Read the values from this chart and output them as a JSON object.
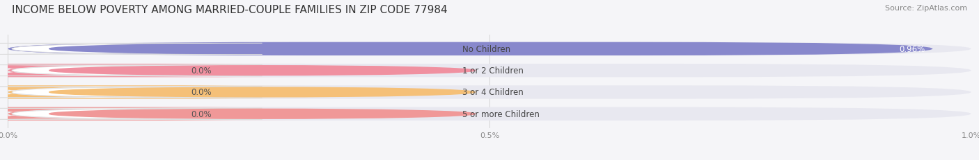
{
  "title": "INCOME BELOW POVERTY AMONG MARRIED-COUPLE FAMILIES IN ZIP CODE 77984",
  "source": "Source: ZipAtlas.com",
  "categories": [
    "No Children",
    "1 or 2 Children",
    "3 or 4 Children",
    "5 or more Children"
  ],
  "values": [
    0.96,
    0.0,
    0.0,
    0.0
  ],
  "bar_colors": [
    "#8888cc",
    "#f090a0",
    "#f5c078",
    "#f09898"
  ],
  "background_color": "#f5f5f8",
  "bar_bg_color": "#e8e8f0",
  "label_bg_color": "#ffffff",
  "xlim": [
    0,
    1.0
  ],
  "xticks": [
    0.0,
    0.5,
    1.0
  ],
  "xtick_labels": [
    "0.0%",
    "0.5%",
    "1.0%"
  ],
  "value_labels": [
    "0.96%",
    "0.0%",
    "0.0%",
    "0.0%"
  ],
  "title_fontsize": 11,
  "label_fontsize": 8.5,
  "tick_fontsize": 8,
  "source_fontsize": 8
}
